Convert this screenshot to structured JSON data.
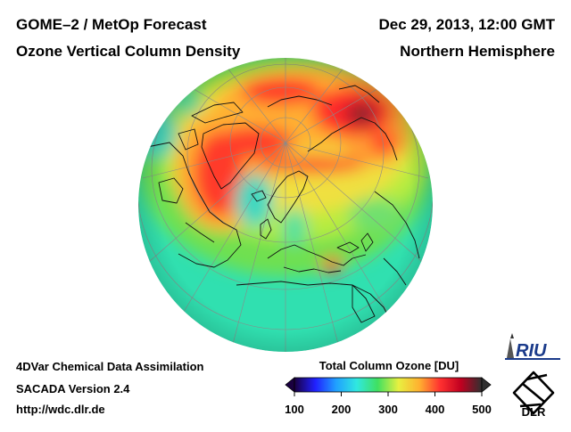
{
  "header": {
    "title_line1": "GOME–2 / MetOp Forecast",
    "title_line2": "Ozone Vertical Column Density",
    "date": "Dec 29, 2013, 12:00 GMT",
    "region": "Northern Hemisphere"
  },
  "footer": {
    "line1": "4DVar Chemical Data Assimilation",
    "line2": "SACADA Version 2.4",
    "line3": "http://wdc.dlr.de"
  },
  "legend": {
    "title": "Total Column Ozone [DU]",
    "ticks": [
      "100",
      "200",
      "300",
      "400",
      "500"
    ],
    "tick_values": [
      100,
      200,
      300,
      400,
      500
    ],
    "range": [
      100,
      500
    ],
    "colors": [
      "#1a0040",
      "#2020ff",
      "#20a0ff",
      "#30e8e0",
      "#40e060",
      "#e8f040",
      "#ffb030",
      "#ff3030",
      "#c00020",
      "#303030"
    ]
  },
  "logos": {
    "riu": "RIU",
    "dlr": "DLR"
  },
  "map": {
    "projection": "orthographic",
    "hemisphere": "Northern Hemisphere",
    "background_color": "#30e0b0"
  }
}
